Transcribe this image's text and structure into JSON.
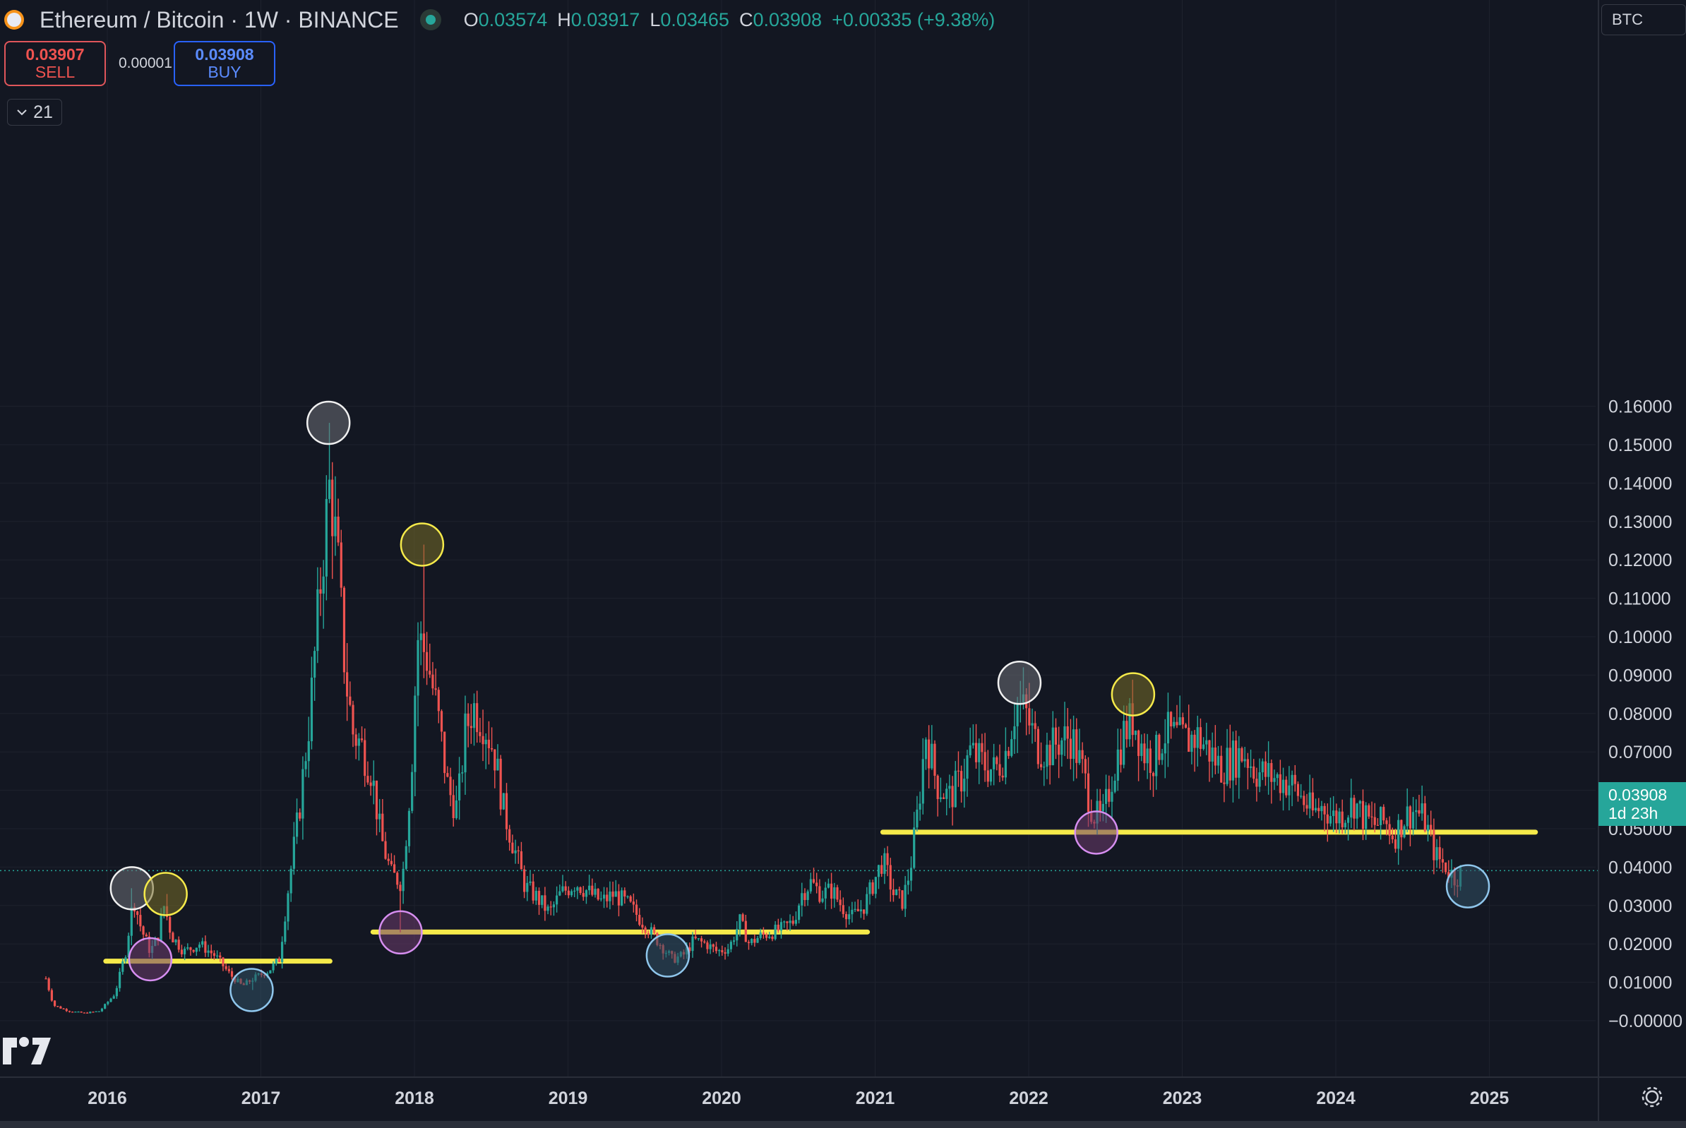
{
  "header": {
    "symbol": "Ethereum / Bitcoin · 1W · BINANCE",
    "ohlc": [
      {
        "k": "O",
        "v": "0.03574"
      },
      {
        "k": "H",
        "v": "0.03917"
      },
      {
        "k": "L",
        "v": "0.03465"
      },
      {
        "k": "C",
        "v": "0.03908"
      }
    ],
    "change": "+0.00335 (+9.38%)"
  },
  "trade": {
    "sell_price": "0.03907",
    "sell_label": "SELL",
    "spread": "0.00001",
    "buy_price": "0.03908",
    "buy_label": "BUY"
  },
  "indicator_count": "21",
  "currency": "BTC",
  "last_price": {
    "value": "0.03908",
    "countdown": "1d 23h"
  },
  "colors": {
    "up": "#26a69a",
    "down": "#ef5350",
    "line": "#f5ea4a",
    "bg": "#131722",
    "grid": "#1e222d",
    "axis_text": "#d1d4dc"
  },
  "chart_data": {
    "type": "candlestick",
    "interval": "1W",
    "x_ticks": [
      "2016",
      "2017",
      "2018",
      "2019",
      "2020",
      "2021",
      "2022",
      "2023",
      "2024",
      "2025"
    ],
    "y_ticks": [
      "−0.00000",
      "0.01000",
      "0.02000",
      "0.03000",
      "0.04000",
      "0.05000",
      "0.06000",
      "0.07000",
      "0.08000",
      "0.09000",
      "0.10000",
      "0.11000",
      "0.12000",
      "0.13000",
      "0.14000",
      "0.15000",
      "0.16000"
    ],
    "ylim": [
      -0.002,
      0.17
    ],
    "xlim": [
      2015.5,
      2025.5
    ],
    "close_path": [
      [
        2015.6,
        0.011
      ],
      [
        2015.65,
        0.004
      ],
      [
        2015.75,
        0.0025
      ],
      [
        2015.85,
        0.002
      ],
      [
        2015.95,
        0.0025
      ],
      [
        2016.05,
        0.007
      ],
      [
        2016.12,
        0.018
      ],
      [
        2016.17,
        0.032
      ],
      [
        2016.22,
        0.024
      ],
      [
        2016.28,
        0.018
      ],
      [
        2016.33,
        0.022
      ],
      [
        2016.37,
        0.03
      ],
      [
        2016.42,
        0.022
      ],
      [
        2016.5,
        0.018
      ],
      [
        2016.6,
        0.02
      ],
      [
        2016.7,
        0.017
      ],
      [
        2016.8,
        0.012
      ],
      [
        2016.88,
        0.009
      ],
      [
        2016.95,
        0.011
      ],
      [
        2017.05,
        0.013
      ],
      [
        2017.12,
        0.016
      ],
      [
        2017.18,
        0.035
      ],
      [
        2017.25,
        0.055
      ],
      [
        2017.32,
        0.08
      ],
      [
        2017.4,
        0.12
      ],
      [
        2017.45,
        0.14
      ],
      [
        2017.5,
        0.12
      ],
      [
        2017.55,
        0.09
      ],
      [
        2017.6,
        0.075
      ],
      [
        2017.65,
        0.072
      ],
      [
        2017.72,
        0.065
      ],
      [
        2017.78,
        0.048
      ],
      [
        2017.85,
        0.038
      ],
      [
        2017.92,
        0.036
      ],
      [
        2017.98,
        0.065
      ],
      [
        2018.02,
        0.1
      ],
      [
        2018.08,
        0.095
      ],
      [
        2018.15,
        0.08
      ],
      [
        2018.22,
        0.06
      ],
      [
        2018.28,
        0.055
      ],
      [
        2018.33,
        0.075
      ],
      [
        2018.38,
        0.082
      ],
      [
        2018.45,
        0.078
      ],
      [
        2018.52,
        0.07
      ],
      [
        2018.58,
        0.055
      ],
      [
        2018.65,
        0.045
      ],
      [
        2018.72,
        0.035
      ],
      [
        2018.8,
        0.032
      ],
      [
        2018.88,
        0.028
      ],
      [
        2018.95,
        0.033
      ],
      [
        2019.05,
        0.036
      ],
      [
        2019.15,
        0.033
      ],
      [
        2019.22,
        0.031
      ],
      [
        2019.3,
        0.033
      ],
      [
        2019.4,
        0.03
      ],
      [
        2019.5,
        0.025
      ],
      [
        2019.6,
        0.02
      ],
      [
        2019.68,
        0.016
      ],
      [
        2019.75,
        0.017
      ],
      [
        2019.82,
        0.021
      ],
      [
        2019.9,
        0.02
      ],
      [
        2019.97,
        0.018
      ],
      [
        2020.05,
        0.019
      ],
      [
        2020.12,
        0.026
      ],
      [
        2020.18,
        0.02
      ],
      [
        2020.25,
        0.022
      ],
      [
        2020.33,
        0.023
      ],
      [
        2020.4,
        0.024
      ],
      [
        2020.47,
        0.026
      ],
      [
        2020.52,
        0.033
      ],
      [
        2020.58,
        0.036
      ],
      [
        2020.65,
        0.033
      ],
      [
        2020.72,
        0.034
      ],
      [
        2020.78,
        0.03
      ],
      [
        2020.85,
        0.027
      ],
      [
        2020.93,
        0.03
      ],
      [
        2021.0,
        0.037
      ],
      [
        2021.05,
        0.042
      ],
      [
        2021.12,
        0.033
      ],
      [
        2021.18,
        0.031
      ],
      [
        2021.23,
        0.04
      ],
      [
        2021.28,
        0.055
      ],
      [
        2021.33,
        0.075
      ],
      [
        2021.4,
        0.062
      ],
      [
        2021.48,
        0.058
      ],
      [
        2021.55,
        0.062
      ],
      [
        2021.62,
        0.07
      ],
      [
        2021.7,
        0.067
      ],
      [
        2021.78,
        0.065
      ],
      [
        2021.85,
        0.07
      ],
      [
        2021.92,
        0.083
      ],
      [
        2021.98,
        0.08
      ],
      [
        2022.05,
        0.072
      ],
      [
        2022.12,
        0.07
      ],
      [
        2022.2,
        0.073
      ],
      [
        2022.28,
        0.074
      ],
      [
        2022.35,
        0.065
      ],
      [
        2022.42,
        0.054
      ],
      [
        2022.48,
        0.052
      ],
      [
        2022.55,
        0.065
      ],
      [
        2022.62,
        0.075
      ],
      [
        2022.68,
        0.079
      ],
      [
        2022.75,
        0.07
      ],
      [
        2022.82,
        0.068
      ],
      [
        2022.88,
        0.075
      ],
      [
        2022.95,
        0.074
      ],
      [
        2023.02,
        0.073
      ],
      [
        2023.1,
        0.074
      ],
      [
        2023.18,
        0.07
      ],
      [
        2023.25,
        0.066
      ],
      [
        2023.32,
        0.068
      ],
      [
        2023.4,
        0.07
      ],
      [
        2023.48,
        0.065
      ],
      [
        2023.55,
        0.064
      ],
      [
        2023.62,
        0.063
      ],
      [
        2023.7,
        0.062
      ],
      [
        2023.78,
        0.058
      ],
      [
        2023.85,
        0.054
      ],
      [
        2023.92,
        0.056
      ],
      [
        2023.98,
        0.053
      ],
      [
        2024.05,
        0.054
      ],
      [
        2024.12,
        0.057
      ],
      [
        2024.18,
        0.053
      ],
      [
        2024.25,
        0.051
      ],
      [
        2024.32,
        0.052
      ],
      [
        2024.38,
        0.048
      ],
      [
        2024.45,
        0.053
      ],
      [
        2024.52,
        0.055
      ],
      [
        2024.58,
        0.052
      ],
      [
        2024.65,
        0.043
      ],
      [
        2024.72,
        0.04
      ],
      [
        2024.78,
        0.037
      ],
      [
        2024.82,
        0.0391
      ]
    ],
    "horizontal_lines": [
      {
        "y": 0.0155,
        "x0": 2015.99,
        "x1": 2017.45
      },
      {
        "y": 0.0231,
        "x0": 2017.73,
        "x1": 2020.95
      },
      {
        "y": 0.0491,
        "x0": 2021.05,
        "x1": 2025.3
      }
    ],
    "markers": [
      {
        "x": 2016.16,
        "y": 0.0345,
        "color": "white"
      },
      {
        "x": 2016.38,
        "y": 0.033,
        "color": "yellow"
      },
      {
        "x": 2016.28,
        "y": 0.016,
        "color": "purple"
      },
      {
        "x": 2016.94,
        "y": 0.008,
        "color": "blue"
      },
      {
        "x": 2017.44,
        "y": 0.1557,
        "color": "white"
      },
      {
        "x": 2018.05,
        "y": 0.124,
        "color": "yellow"
      },
      {
        "x": 2017.91,
        "y": 0.023,
        "color": "purple"
      },
      {
        "x": 2019.65,
        "y": 0.017,
        "color": "blue"
      },
      {
        "x": 2021.94,
        "y": 0.088,
        "color": "white"
      },
      {
        "x": 2022.68,
        "y": 0.085,
        "color": "yellow"
      },
      {
        "x": 2022.44,
        "y": 0.049,
        "color": "purple"
      },
      {
        "x": 2024.86,
        "y": 0.035,
        "color": "blue"
      }
    ],
    "last_price": 0.03908
  }
}
